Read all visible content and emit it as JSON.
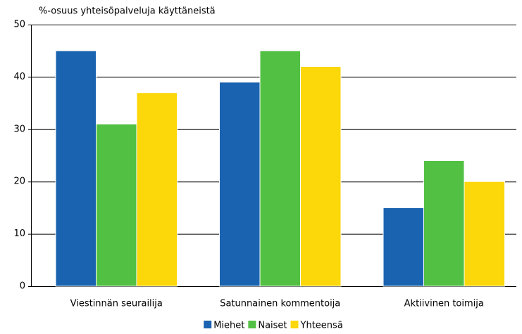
{
  "chart_data": {
    "type": "bar",
    "y_axis_label": "%-osuus yhteisöpalveluja käyttäneistä",
    "categories": [
      "Viestinnän seurailija",
      "Satunnainen kommentoija",
      "Aktiivinen toimija"
    ],
    "series": [
      {
        "name": "Miehet",
        "color": "#1a63b0",
        "values": [
          45,
          39,
          15
        ]
      },
      {
        "name": "Naiset",
        "color": "#52c143",
        "values": [
          31,
          45,
          24
        ]
      },
      {
        "name": "Yhteensä",
        "color": "#fcd709",
        "values": [
          37,
          42,
          20
        ]
      }
    ],
    "ylim": [
      0,
      50
    ],
    "yticks": [
      0,
      10,
      20,
      30,
      40,
      50
    ],
    "grid": true,
    "legend": "bottom"
  }
}
